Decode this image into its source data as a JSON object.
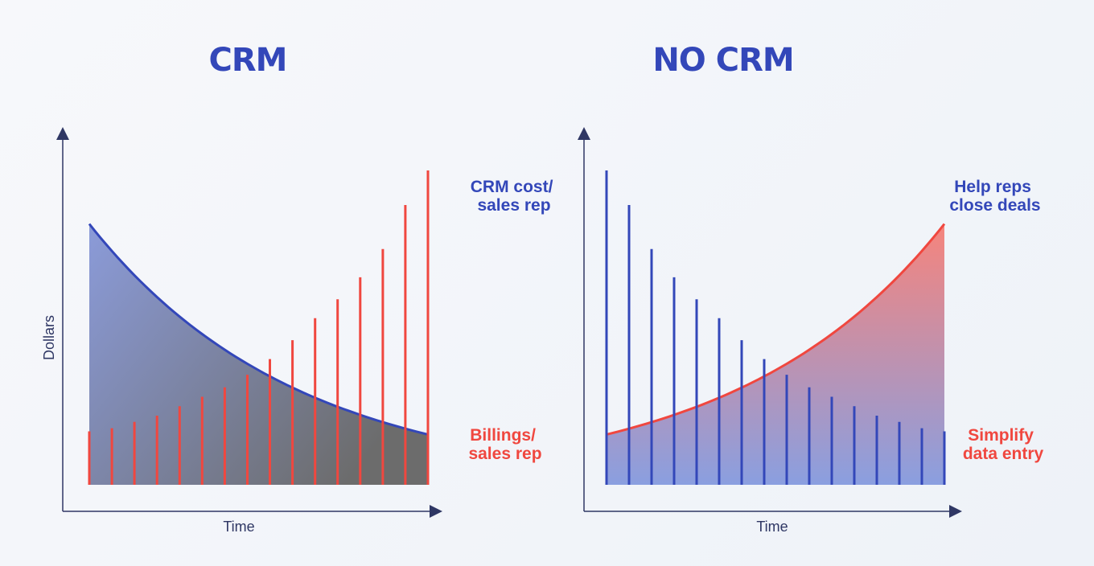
{
  "colors": {
    "blue": "#3347b9",
    "red": "#f0473f",
    "axis": "#2f3764",
    "blue_fill": "#8f9fd8",
    "gray_fill": "#6f6f72",
    "red_fill": "#f58c86"
  },
  "chart_data": [
    {
      "type": "bar",
      "title": "CRM",
      "xlabel": "Time",
      "ylabel": "Dollars",
      "ylim": [
        0,
        100
      ],
      "x": [
        1,
        2,
        3,
        4,
        5,
        6,
        7,
        8,
        9,
        10,
        11,
        12,
        13,
        14,
        15,
        16
      ],
      "series": [
        {
          "name": "Billings/ sales rep",
          "kind": "bars",
          "color": "red",
          "values": [
            17,
            18,
            20,
            22,
            25,
            28,
            31,
            35,
            40,
            46,
            53,
            59,
            66,
            75,
            89,
            100
          ]
        },
        {
          "name": "CRM cost/ sales rep",
          "kind": "area",
          "color": "blue",
          "curve": "decay",
          "start": 83,
          "end": 16
        }
      ],
      "labels": {
        "top": "CRM cost/ sales rep",
        "bottom": "Billings/ sales rep"
      }
    },
    {
      "type": "bar",
      "title": "NO CRM",
      "xlabel": "Time",
      "ylabel": "",
      "ylim": [
        0,
        100
      ],
      "x": [
        1,
        2,
        3,
        4,
        5,
        6,
        7,
        8,
        9,
        10,
        11,
        12,
        13,
        14,
        15,
        16
      ],
      "series": [
        {
          "name": "Help reps close deals",
          "kind": "bars",
          "color": "blue",
          "values": [
            100,
            89,
            75,
            66,
            59,
            53,
            46,
            40,
            35,
            31,
            28,
            25,
            22,
            20,
            18,
            17
          ]
        },
        {
          "name": "Simplify data entry",
          "kind": "area",
          "color": "red",
          "curve": "growth",
          "start": 16,
          "end": 83
        }
      ],
      "labels": {
        "top": "Help reps close deals",
        "bottom": "Simplify data entry"
      }
    }
  ]
}
